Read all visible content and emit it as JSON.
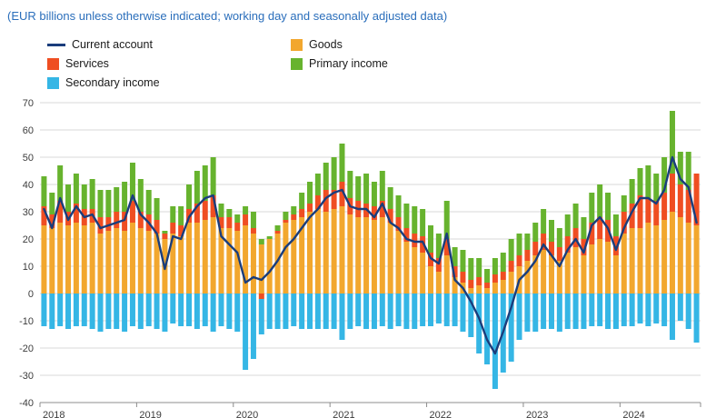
{
  "subtitle": "(EUR billions unless otherwise indicated; working day and seasonally adjusted data)",
  "colors": {
    "subtitle": "#2a6ebb",
    "current_account": "#1a3d7c",
    "goods": "#f2a72e",
    "services": "#ef4e22",
    "primary_income": "#67b32e",
    "secondary_income": "#35b6e5",
    "grid": "#d9d9d9",
    "axis": "#8c8c8c",
    "axis_text": "#3c3c3c"
  },
  "legend": {
    "items": [
      {
        "label": "Current account",
        "color_key": "current_account",
        "marker": "line"
      },
      {
        "label": "Goods",
        "color_key": "goods",
        "marker": "square"
      },
      {
        "label": "Services",
        "color_key": "services",
        "marker": "square"
      },
      {
        "label": "Primary income",
        "color_key": "primary_income",
        "marker": "square"
      },
      {
        "label": "Secondary income",
        "color_key": "secondary_income",
        "marker": "square"
      }
    ]
  },
  "chart_data": {
    "type": "bar",
    "stacked": true,
    "overlay_line": "Current account",
    "title": "",
    "xlabel": "",
    "ylabel": "",
    "ylim": [
      -40,
      70
    ],
    "ytick_step": 10,
    "grid": true,
    "legend_position": "top-left",
    "xticks": [
      "2018",
      "2019",
      "2020",
      "2021",
      "2022",
      "2023",
      "2024"
    ],
    "months": [
      "2018-01",
      "2018-02",
      "2018-03",
      "2018-04",
      "2018-05",
      "2018-06",
      "2018-07",
      "2018-08",
      "2018-09",
      "2018-10",
      "2018-11",
      "2018-12",
      "2019-01",
      "2019-02",
      "2019-03",
      "2019-04",
      "2019-05",
      "2019-06",
      "2019-07",
      "2019-08",
      "2019-09",
      "2019-10",
      "2019-11",
      "2019-12",
      "2020-01",
      "2020-02",
      "2020-03",
      "2020-04",
      "2020-05",
      "2020-06",
      "2020-07",
      "2020-08",
      "2020-09",
      "2020-10",
      "2020-11",
      "2020-12",
      "2021-01",
      "2021-02",
      "2021-03",
      "2021-04",
      "2021-05",
      "2021-06",
      "2021-07",
      "2021-08",
      "2021-09",
      "2021-10",
      "2021-11",
      "2021-12",
      "2022-01",
      "2022-02",
      "2022-03",
      "2022-04",
      "2022-05",
      "2022-06",
      "2022-07",
      "2022-08",
      "2022-09",
      "2022-10",
      "2022-11",
      "2022-12",
      "2023-01",
      "2023-02",
      "2023-03",
      "2023-04",
      "2023-05",
      "2023-06",
      "2023-07",
      "2023-08",
      "2023-09",
      "2023-10",
      "2023-11",
      "2023-12",
      "2024-01",
      "2024-02",
      "2024-03",
      "2024-04",
      "2024-05",
      "2024-06",
      "2024-07",
      "2024-08",
      "2024-09",
      "2024-10"
    ],
    "series": [
      {
        "name": "Goods",
        "type": "bar",
        "color_key": "goods",
        "values": [
          25,
          24,
          26,
          25,
          26,
          25,
          26,
          22,
          23,
          24,
          23,
          26,
          24,
          23,
          22,
          20,
          22,
          21,
          26,
          26,
          27,
          28,
          24,
          24,
          23,
          25,
          22,
          18,
          20,
          22,
          26,
          27,
          28,
          30,
          31,
          30,
          31,
          32,
          29,
          28,
          28,
          27,
          28,
          26,
          23,
          19,
          17,
          15,
          10,
          8,
          14,
          6,
          4,
          2,
          3,
          2,
          4,
          5,
          8,
          10,
          12,
          14,
          16,
          14,
          12,
          15,
          17,
          14,
          18,
          20,
          19,
          14,
          22,
          24,
          24,
          26,
          25,
          27,
          30,
          28,
          26,
          25
        ]
      },
      {
        "name": "Services",
        "type": "bar",
        "color_key": "services",
        "values": [
          7,
          5,
          8,
          5,
          7,
          6,
          5,
          6,
          5,
          6,
          7,
          8,
          6,
          6,
          5,
          2,
          4,
          4,
          5,
          7,
          7,
          8,
          4,
          4,
          3,
          4,
          2,
          -2,
          0,
          1,
          1,
          2,
          3,
          3,
          5,
          8,
          7,
          9,
          6,
          6,
          5,
          5,
          6,
          5,
          5,
          5,
          5,
          6,
          5,
          5,
          6,
          4,
          4,
          3,
          3,
          2,
          3,
          3,
          4,
          4,
          4,
          5,
          6,
          5,
          5,
          6,
          7,
          6,
          8,
          8,
          8,
          7,
          8,
          9,
          12,
          9,
          9,
          10,
          14,
          12,
          12,
          19
        ]
      },
      {
        "name": "Primary income",
        "type": "bar",
        "color_key": "primary_income",
        "values": [
          11,
          8,
          13,
          10,
          11,
          9,
          11,
          10,
          10,
          9,
          11,
          14,
          12,
          9,
          8,
          1,
          6,
          7,
          9,
          12,
          13,
          14,
          5,
          3,
          3,
          3,
          6,
          2,
          1,
          2,
          3,
          3,
          6,
          8,
          8,
          10,
          12,
          14,
          10,
          9,
          11,
          9,
          11,
          8,
          8,
          9,
          10,
          10,
          10,
          9,
          14,
          7,
          8,
          8,
          7,
          5,
          6,
          7,
          8,
          8,
          6,
          7,
          9,
          8,
          7,
          8,
          9,
          8,
          11,
          12,
          10,
          8,
          6,
          9,
          10,
          12,
          10,
          13,
          23,
          12,
          14,
          0
        ]
      },
      {
        "name": "Secondary income",
        "type": "bar",
        "color_key": "secondary_income",
        "values": [
          -12,
          -13,
          -12,
          -13,
          -12,
          -12,
          -13,
          -14,
          -13,
          -13,
          -14,
          -12,
          -13,
          -12,
          -13,
          -14,
          -11,
          -12,
          -12,
          -13,
          -12,
          -14,
          -12,
          -13,
          -14,
          -28,
          -24,
          -13,
          -13,
          -13,
          -13,
          -12,
          -13,
          -13,
          -13,
          -13,
          -13,
          -17,
          -13,
          -12,
          -13,
          -13,
          -12,
          -13,
          -12,
          -13,
          -13,
          -12,
          -12,
          -11,
          -12,
          -12,
          -14,
          -16,
          -22,
          -26,
          -35,
          -29,
          -25,
          -17,
          -14,
          -14,
          -13,
          -13,
          -14,
          -13,
          -13,
          -13,
          -12,
          -12,
          -13,
          -13,
          -12,
          -12,
          -11,
          -12,
          -11,
          -12,
          -17,
          -10,
          -13,
          -18
        ]
      },
      {
        "name": "Current account",
        "type": "line",
        "color_key": "current_account",
        "values": [
          31,
          24,
          35,
          27,
          32,
          28,
          29,
          24,
          25,
          26,
          27,
          36,
          29,
          26,
          22,
          9,
          21,
          20,
          28,
          32,
          35,
          36,
          21,
          18,
          15,
          4,
          6,
          5,
          8,
          12,
          17,
          20,
          24,
          28,
          31,
          35,
          37,
          38,
          32,
          31,
          31,
          28,
          33,
          26,
          24,
          20,
          19,
          19,
          13,
          11,
          22,
          5,
          2,
          -3,
          -9,
          -17,
          -22,
          -14,
          -5,
          5,
          8,
          12,
          18,
          14,
          10,
          16,
          20,
          15,
          25,
          28,
          24,
          16,
          24,
          30,
          35,
          35,
          33,
          38,
          50,
          42,
          39,
          26
        ]
      }
    ]
  }
}
